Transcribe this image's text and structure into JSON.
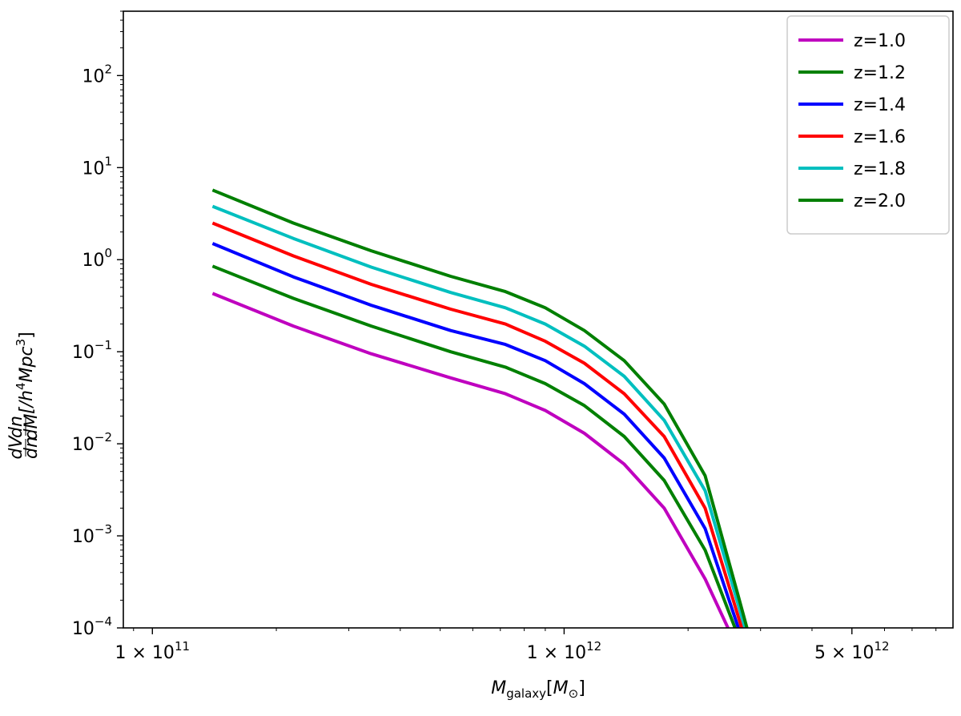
{
  "chart_data": {
    "type": "line",
    "xscale": "log",
    "yscale": "log",
    "xlim": [
      85000000000,
      8800000000000
    ],
    "ylim": [
      0.0001,
      500
    ],
    "grid": false,
    "legend_position": "top-right",
    "xlabel_main": "M",
    "xlabel_sub": "galaxy",
    "xlabel_bracket_open": "[",
    "xlabel_unit": "M",
    "xlabel_unit_sub": "⊙",
    "xlabel_bracket_close": "]",
    "ylabel_frac1_num": "dV",
    "ylabel_frac1_den": "dn",
    "ylabel_frac2_num": "dn",
    "ylabel_frac2_den": "dM",
    "ylabel_bracket_text": "[/h",
    "ylabel_h_exp": "4",
    "ylabel_mpc": "Mpc",
    "ylabel_mpc_exp": "3",
    "ylabel_close": "]",
    "x_ticks": [
      {
        "value": 100000000000,
        "mantissa": "1 × 10",
        "exp": "11"
      },
      {
        "value": 1000000000000,
        "mantissa": "1 × 10",
        "exp": "12"
      },
      {
        "value": 5000000000000,
        "mantissa": "5 × 10",
        "exp": "12"
      }
    ],
    "y_ticks": [
      {
        "value": 0.0001,
        "base": "10",
        "exp": "−4"
      },
      {
        "value": 0.001,
        "base": "10",
        "exp": "−3"
      },
      {
        "value": 0.01,
        "base": "10",
        "exp": "−2"
      },
      {
        "value": 0.1,
        "base": "10",
        "exp": "−1"
      },
      {
        "value": 1,
        "base": "10",
        "exp": "0"
      },
      {
        "value": 10,
        "base": "10",
        "exp": "1"
      },
      {
        "value": 100,
        "base": "10",
        "exp": "2"
      }
    ],
    "series": [
      {
        "name": "z=1.0",
        "color": "#bf00bf",
        "x": [
          140000000000.0,
          220000000000.0,
          340000000000.0,
          530000000000.0,
          720000000000.0,
          900000000000.0,
          1120000000000.0,
          1400000000000.0,
          1750000000000.0,
          2200000000000.0,
          2500000000000.0
        ],
        "y": [
          0.43,
          0.19,
          0.095,
          0.052,
          0.035,
          0.023,
          0.013,
          0.006,
          0.002,
          0.00034,
          0.0001
        ]
      },
      {
        "name": "z=1.2",
        "color": "#008000",
        "x": [
          140000000000.0,
          220000000000.0,
          340000000000.0,
          530000000000.0,
          720000000000.0,
          900000000000.0,
          1120000000000.0,
          1400000000000.0,
          1750000000000.0,
          2200000000000.0,
          2600000000000.0
        ],
        "y": [
          0.85,
          0.38,
          0.19,
          0.1,
          0.068,
          0.045,
          0.026,
          0.012,
          0.004,
          0.0007,
          0.0001
        ]
      },
      {
        "name": "z=1.4",
        "color": "#0000ff",
        "x": [
          140000000000.0,
          220000000000.0,
          340000000000.0,
          530000000000.0,
          720000000000.0,
          900000000000.0,
          1120000000000.0,
          1400000000000.0,
          1750000000000.0,
          2200000000000.0,
          2650000000000.0
        ],
        "y": [
          1.5,
          0.65,
          0.32,
          0.17,
          0.12,
          0.08,
          0.045,
          0.021,
          0.007,
          0.0012,
          0.0001
        ]
      },
      {
        "name": "z=1.6",
        "color": "#ff0000",
        "x": [
          140000000000.0,
          220000000000.0,
          340000000000.0,
          530000000000.0,
          720000000000.0,
          900000000000.0,
          1120000000000.0,
          1400000000000.0,
          1750000000000.0,
          2200000000000.0,
          2700000000000.0
        ],
        "y": [
          2.5,
          1.1,
          0.54,
          0.29,
          0.2,
          0.13,
          0.075,
          0.035,
          0.012,
          0.002,
          0.0001
        ]
      },
      {
        "name": "z=1.8",
        "color": "#00bfbf",
        "x": [
          140000000000.0,
          220000000000.0,
          340000000000.0,
          530000000000.0,
          720000000000.0,
          900000000000.0,
          1120000000000.0,
          1400000000000.0,
          1750000000000.0,
          2200000000000.0,
          2750000000000.0
        ],
        "y": [
          3.8,
          1.7,
          0.83,
          0.44,
          0.3,
          0.2,
          0.115,
          0.054,
          0.018,
          0.0031,
          0.0001
        ]
      },
      {
        "name": "z=2.0",
        "color": "#007f00",
        "x": [
          140000000000.0,
          220000000000.0,
          340000000000.0,
          530000000000.0,
          720000000000.0,
          900000000000.0,
          1120000000000.0,
          1400000000000.0,
          1750000000000.0,
          2200000000000.0,
          2650000000000.0,
          2780000000000.0
        ],
        "y": [
          5.7,
          2.5,
          1.25,
          0.66,
          0.45,
          0.3,
          0.17,
          0.08,
          0.027,
          0.0045,
          0.00022,
          0.0001
        ]
      }
    ]
  }
}
